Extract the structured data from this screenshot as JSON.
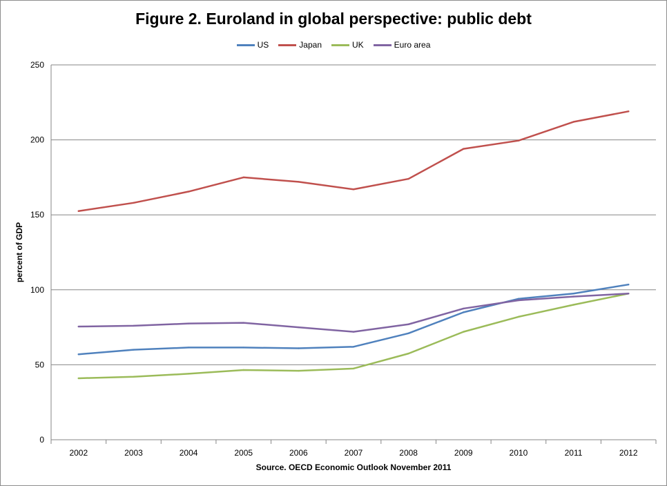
{
  "chart_data": {
    "type": "line",
    "title": "Figure 2. Euroland in global perspective: public debt",
    "xlabel": "Source. OECD Economic Outlook November 2011",
    "ylabel": "percent of GDP",
    "categories": [
      "2002",
      "2003",
      "2004",
      "2005",
      "2006",
      "2007",
      "2008",
      "2009",
      "2010",
      "2011",
      "2012"
    ],
    "ylim": [
      0,
      250
    ],
    "yticks": [
      0,
      50,
      100,
      150,
      200,
      250
    ],
    "grid": true,
    "legend_position": "top",
    "series": [
      {
        "name": "US",
        "color": "#4F81BD",
        "values": [
          57,
          60,
          61.5,
          61.5,
          61,
          62,
          71,
          85,
          94,
          97.5,
          103.5
        ]
      },
      {
        "name": "Japan",
        "color": "#C0504D",
        "values": [
          152.5,
          158,
          165.5,
          175,
          172,
          167,
          174,
          194,
          199.5,
          212,
          219
        ]
      },
      {
        "name": "UK",
        "color": "#9BBB59",
        "values": [
          41,
          42,
          44,
          46.5,
          46,
          47.5,
          57.5,
          72,
          82,
          90,
          97.5
        ]
      },
      {
        "name": "Euro area",
        "color": "#8064A2",
        "values": [
          75.5,
          76,
          77.5,
          78,
          75,
          72,
          77,
          87.5,
          93,
          95.5,
          97.5
        ]
      }
    ]
  }
}
